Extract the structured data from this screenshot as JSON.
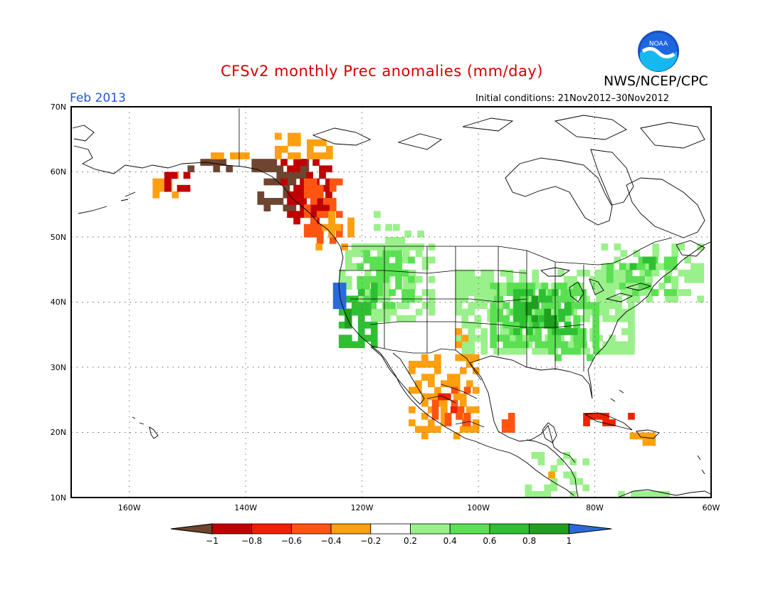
{
  "title": "CFSv2 monthly Prec anomalies (mm/day)",
  "agency": "NWS/NCEP/CPC",
  "logo_text": "NOAA",
  "month": "Feb 2013",
  "initial_conditions": "Initial conditions: 21Nov2012–30Nov2012",
  "lat_labels": [
    "70N",
    "60N",
    "50N",
    "40N",
    "30N",
    "20N",
    "10N"
  ],
  "lon_labels": [
    "160W",
    "140W",
    "120W",
    "100W",
    "80W",
    "60W"
  ],
  "colorbar": {
    "labels": [
      "−1",
      "−0.8",
      "−0.6",
      "−0.4",
      "−0.2",
      "0.2",
      "0.4",
      "0.6",
      "0.8",
      "1"
    ],
    "colors": [
      "#6e4530",
      "#c00000",
      "#ee2200",
      "#ff5511",
      "#ffa010",
      "#ffffff",
      "#9af08a",
      "#5ae052",
      "#2ec032",
      "#1ea01e",
      "#2a6ad8"
    ]
  },
  "colors": {
    "title": "#d40000",
    "month": "#2255dd",
    "below_1": "#6e4530",
    "below_08": "#c00000",
    "below_06": "#ee2200",
    "below_04": "#ff5511",
    "below_02": "#ffa010",
    "above_02": "#9af08a",
    "above_04": "#5ae052",
    "above_06": "#2ec032",
    "above_08": "#1ea01e",
    "above_1": "#2a6ad8"
  },
  "anomaly_regions": [
    {
      "region": "Alaska south coast and Gulf of Alaska",
      "category": "below_1"
    },
    {
      "region": "British Columbia coast",
      "category": "below_08"
    },
    {
      "region": "Yukon and northern BC",
      "category": "below_02"
    },
    {
      "region": "Northern California coast",
      "category": "above_1"
    },
    {
      "region": "Pacific Northwest and Intermountain West",
      "category": "above_04"
    },
    {
      "region": "Ohio and Mississippi valleys",
      "category": "above_06"
    },
    {
      "region": "Eastern US and New England",
      "category": "above_04"
    },
    {
      "region": "Western and central Mexico",
      "category": "below_04"
    },
    {
      "region": "Texas and New Mexico",
      "category": "below_02"
    },
    {
      "region": "Cuba and Hispaniola",
      "category": "below_04"
    },
    {
      "region": "Central America",
      "category": "above_02"
    }
  ]
}
